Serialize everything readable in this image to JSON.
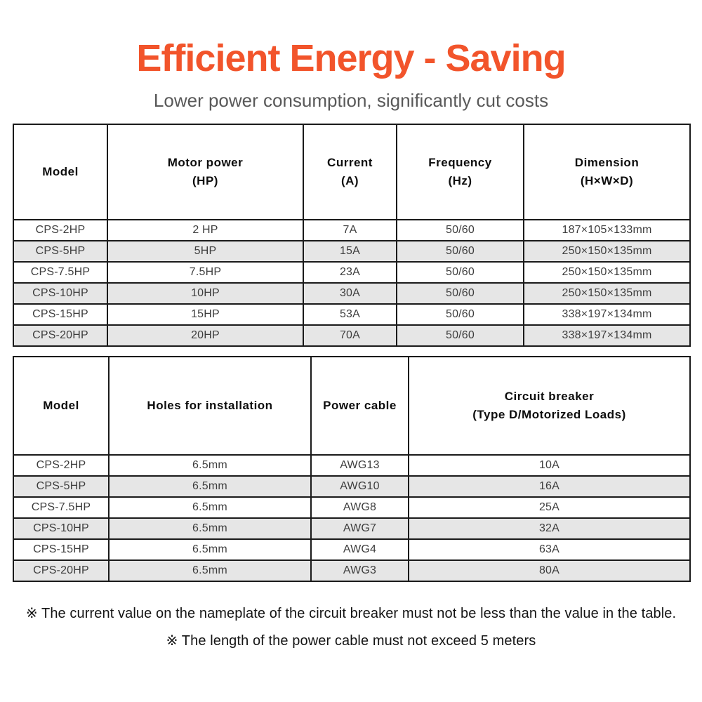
{
  "header": {
    "title": "Efficient Energy - Saving",
    "subtitle": "Lower power consumption, significantly cut costs"
  },
  "colors": {
    "title_orange": "#F2542B",
    "subtitle_gray": "#595959",
    "row_stripe_gray": "#E6E6E6",
    "table_border": "#1A1A1A"
  },
  "electrical_table": {
    "columns": [
      [
        "Model"
      ],
      [
        "Motor power",
        "(HP)"
      ],
      [
        "Current",
        "(A)"
      ],
      [
        "Frequency",
        "(Hz)"
      ],
      [
        "Dimension",
        "(H×W×D)"
      ]
    ],
    "rows": [
      [
        "CPS-2HP",
        "2 HP",
        "7A",
        "50/60",
        "187×105×133mm"
      ],
      [
        "CPS-5HP",
        "5HP",
        "15A",
        "50/60",
        "250×150×135mm"
      ],
      [
        "CPS-7.5HP",
        "7.5HP",
        "23A",
        "50/60",
        "250×150×135mm"
      ],
      [
        "CPS-10HP",
        "10HP",
        "30A",
        "50/60",
        "250×150×135mm"
      ],
      [
        "CPS-15HP",
        "15HP",
        "53A",
        "50/60",
        "338×197×134mm"
      ],
      [
        "CPS-20HP",
        "20HP",
        "70A",
        "50/60",
        "338×197×134mm"
      ]
    ]
  },
  "installation_table": {
    "columns": [
      [
        "Model"
      ],
      [
        "Holes for installation"
      ],
      [
        "Power cable"
      ],
      [
        "Circuit breaker",
        "(Type D/Motorized Loads)"
      ]
    ],
    "rows": [
      [
        "CPS-2HP",
        "6.5mm",
        "AWG13",
        "10A"
      ],
      [
        "CPS-5HP",
        "6.5mm",
        "AWG10",
        "16A"
      ],
      [
        "CPS-7.5HP",
        "6.5mm",
        "AWG8",
        "25A"
      ],
      [
        "CPS-10HP",
        "6.5mm",
        "AWG7",
        "32A"
      ],
      [
        "CPS-15HP",
        "6.5mm",
        "AWG4",
        "63A"
      ],
      [
        "CPS-20HP",
        "6.5mm",
        "AWG3",
        "80A"
      ]
    ]
  },
  "notes": [
    "※ The current value on the nameplate of the circuit breaker must not be less than the value in the table.",
    "※ The length of the power cable must not exceed 5 meters"
  ]
}
